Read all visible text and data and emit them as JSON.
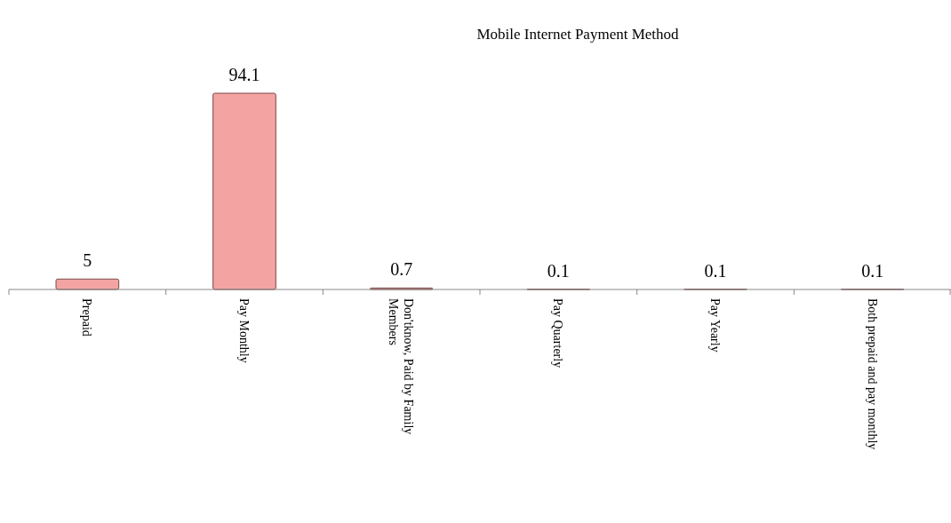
{
  "chart_data": {
    "type": "bar",
    "title": "Mobile Internet Payment Method",
    "categories": [
      "Prepaid",
      "Pay Monthly",
      "Don'tknow, Paid by Family Members",
      "Pay Quarterly",
      "Pay Yearly",
      "Both prepaid and pay monthly"
    ],
    "values": [
      5,
      94.1,
      0.7,
      0.1,
      0.1,
      0.1
    ],
    "color": "#f4a3a3",
    "data_labels": true
  }
}
